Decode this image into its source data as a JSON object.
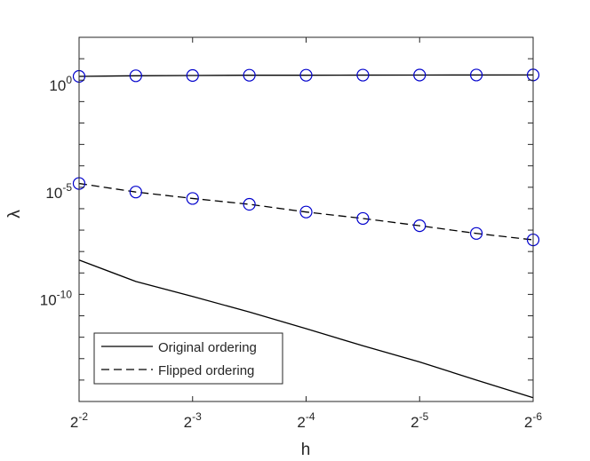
{
  "chart_data": {
    "type": "line",
    "xlabel": "h",
    "ylabel": "λ",
    "x_scale": "log2",
    "y_scale": "log10",
    "x_direction": "reversed",
    "grid": false,
    "legend_position": "bottom-left",
    "xlim": [
      0.015625,
      0.25
    ],
    "ylim": [
      1e-15,
      100.0
    ],
    "x": [
      0.25,
      0.1768,
      0.125,
      0.08839,
      0.0625,
      0.04419,
      0.03125,
      0.0221,
      0.015625
    ],
    "x_ticks": [
      {
        "value": 0.25,
        "base": "2",
        "exp": "-2"
      },
      {
        "value": 0.125,
        "base": "2",
        "exp": "-3"
      },
      {
        "value": 0.0625,
        "base": "2",
        "exp": "-4"
      },
      {
        "value": 0.03125,
        "base": "2",
        "exp": "-5"
      },
      {
        "value": 0.015625,
        "base": "2",
        "exp": "-6"
      }
    ],
    "y_ticks": [
      {
        "value": 1,
        "base": "10",
        "exp": "0"
      },
      {
        "value": 1e-05,
        "base": "10",
        "exp": "-5"
      },
      {
        "value": 1e-10,
        "base": "10",
        "exp": "-10"
      }
    ],
    "series": [
      {
        "name": "",
        "style": "solid",
        "marker": "circle",
        "legend": false,
        "values": [
          1.5,
          1.6,
          1.65,
          1.7,
          1.7,
          1.72,
          1.73,
          1.74,
          1.75
        ]
      },
      {
        "name": "Flipped ordering",
        "style": "dashed",
        "marker": "circle",
        "legend": true,
        "values": [
          1.5e-05,
          6e-06,
          3e-06,
          1.6e-06,
          7e-07,
          3.5e-07,
          1.6e-07,
          7e-08,
          3.5e-08
        ]
      },
      {
        "name": "Original ordering",
        "style": "solid",
        "marker": "none",
        "legend": true,
        "values": [
          4e-09,
          4e-10,
          8e-11,
          1.5e-11,
          2.5e-12,
          4e-13,
          7e-14,
          1e-14,
          1.5e-15
        ]
      }
    ],
    "legend_order": [
      "Original ordering",
      "Flipped ordering"
    ]
  },
  "colors": {
    "axis": "#262626",
    "line": "#000000",
    "marker": "#0000cc",
    "background": "#ffffff"
  }
}
